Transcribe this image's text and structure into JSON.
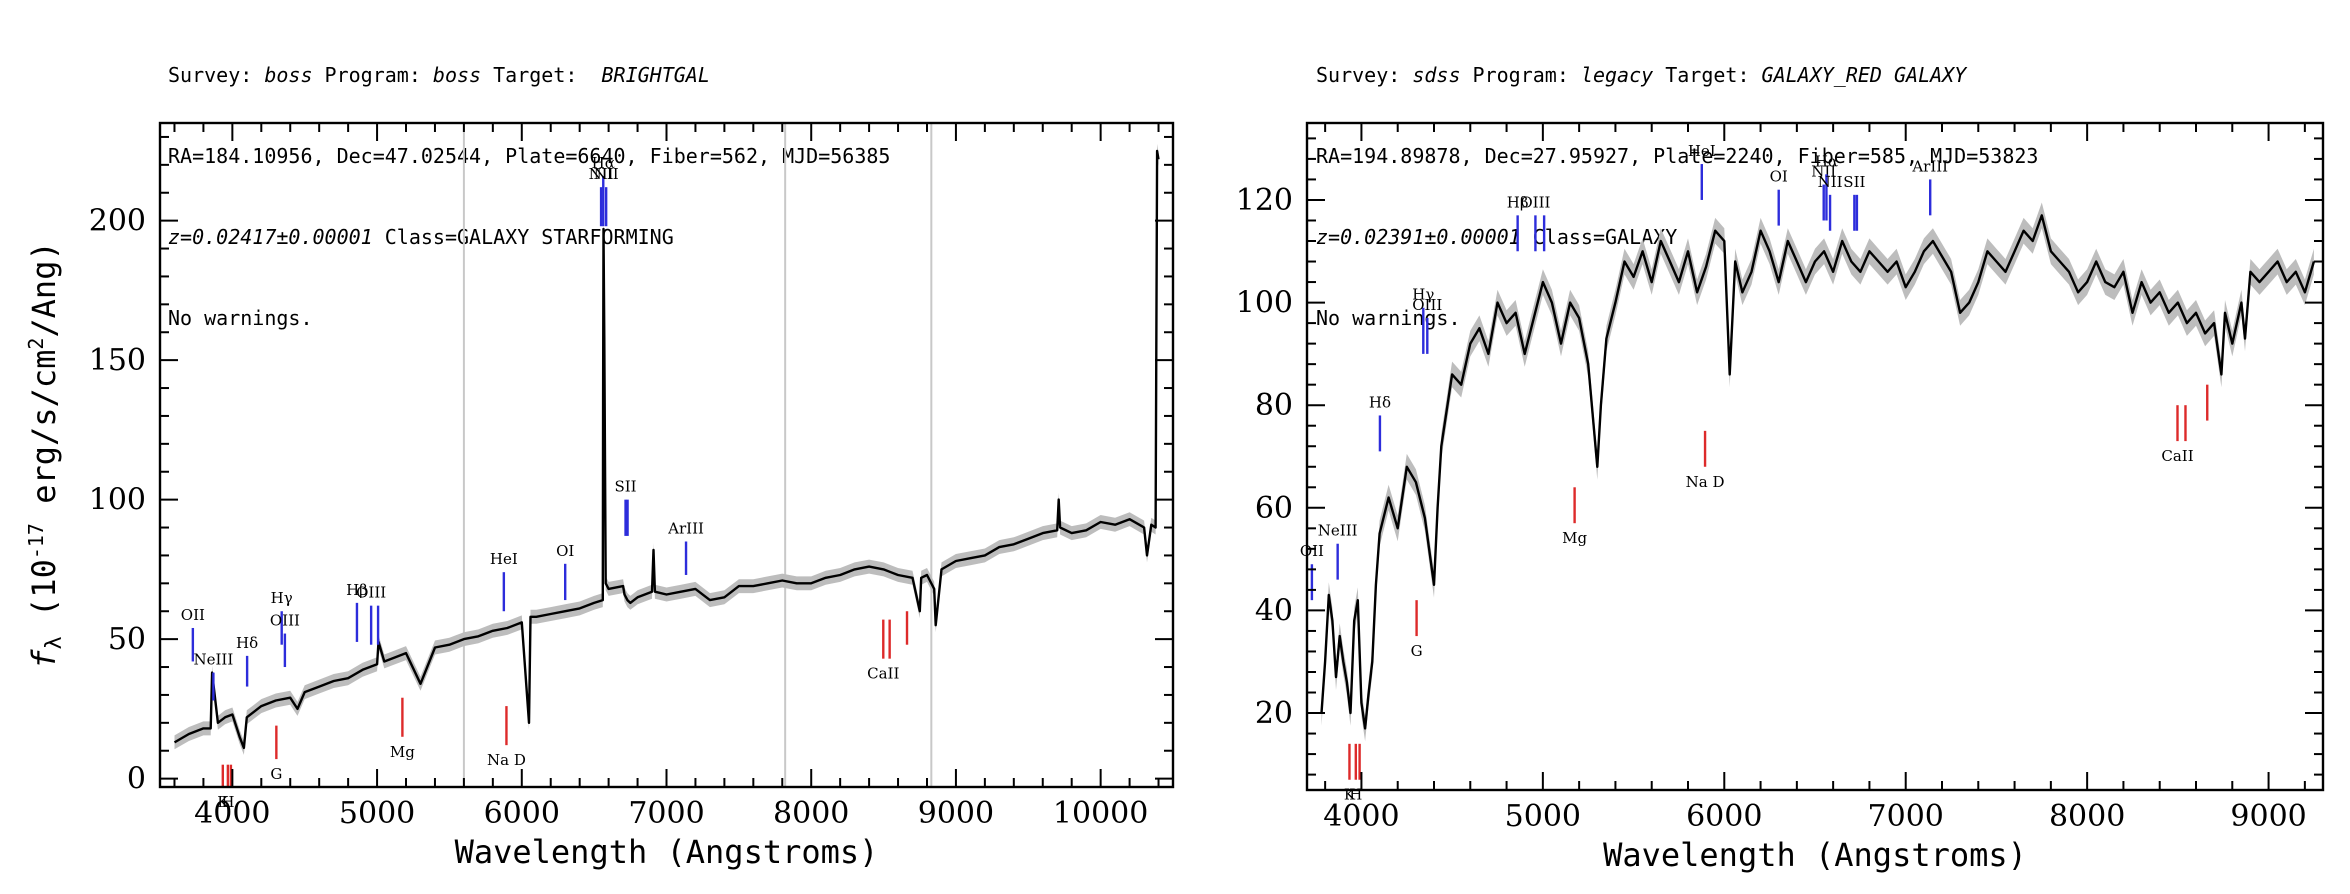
{
  "left": {
    "header": {
      "survey_label": "Survey: ",
      "survey": "boss",
      "program_label": " Program: ",
      "program": "boss",
      "target_label": " Target:  ",
      "target": "BRIGHTGAL",
      "line2": "RA=184.10956, Dec=47.02544, Plate=6640, Fiber=562, MJD=56385",
      "z": "z=0.02417±0.00001",
      "class_text": " Class=GALAXY STARFORMING",
      "warnings": "No warnings."
    },
    "ylabel_prefix": "f",
    "ylabel_sub": "λ",
    "ylabel_main": " (10",
    "ylabel_exp": "-17",
    "ylabel_rest": " erg/s/cm",
    "ylabel_exp2": "2",
    "ylabel_end": "/Ang)"
  },
  "right": {
    "header": {
      "survey_label": "Survey: ",
      "survey": "sdss",
      "program_label": " Program: ",
      "program": "legacy",
      "target_label": " Target: ",
      "target": "GALAXY_RED GALAXY",
      "line2": "RA=194.89878, Dec=27.95927, Plate=2240, Fiber=585, MJD=53823",
      "z": "z=0.02391±0.00001",
      "class_text": " Class=GALAXY",
      "warnings": "No warnings."
    }
  },
  "colors": {
    "emission": "#2d2ddb",
    "absorption": "#dd2a2a",
    "spectrum": "#000000",
    "error": "#bdbdbd",
    "gridline": "#c8c8c8"
  },
  "chart_data": [
    {
      "type": "line",
      "xlabel": "Wavelength (Angstroms)",
      "ylabel": "f_λ (10^-17 erg/s/cm^2/Ang)",
      "xlim": [
        3500,
        10500
      ],
      "ylim": [
        -3,
        235
      ],
      "xticks": [
        4000,
        5000,
        6000,
        7000,
        8000,
        9000,
        10000
      ],
      "yticks": [
        0,
        50,
        100,
        150,
        200
      ],
      "vlines": [
        5600,
        7820,
        8830
      ],
      "series": [
        {
          "x": [
            3600,
            3700,
            3800,
            3850,
            3860,
            3900,
            3950,
            4000,
            4050,
            4080,
            4100,
            4150,
            4200,
            4300,
            4400,
            4450,
            4500,
            4600,
            4700,
            4800,
            4900,
            5000,
            5010,
            5050,
            5100,
            5200,
            5300,
            5400,
            5500,
            5600,
            5700,
            5800,
            5900,
            6000,
            6050,
            6060,
            6100,
            6200,
            6300,
            6400,
            6500,
            6560,
            6562,
            6565,
            6570,
            6580,
            6600,
            6700,
            6710,
            6730,
            6750,
            6800,
            6900,
            6910,
            6920,
            7000,
            7100,
            7200,
            7300,
            7400,
            7500,
            7600,
            7700,
            7800,
            7900,
            8000,
            8100,
            8200,
            8300,
            8400,
            8500,
            8600,
            8700,
            8750,
            8760,
            8800,
            8850,
            8860,
            8900,
            9000,
            9100,
            9200,
            9300,
            9400,
            9500,
            9600,
            9700,
            9710,
            9720,
            9800,
            9900,
            10000,
            10100,
            10200,
            10300,
            10320,
            10350,
            10380,
            10390,
            10400
          ],
          "y": [
            13,
            16,
            18,
            18,
            38,
            20,
            22,
            23,
            15,
            11,
            22,
            24,
            26,
            28,
            29,
            25,
            31,
            33,
            35,
            36,
            39,
            41,
            49,
            42,
            43,
            45,
            34,
            47,
            48,
            50,
            51,
            53,
            54,
            56,
            20,
            58,
            58,
            59,
            60,
            61,
            63,
            64,
            136,
            197,
            158,
            70,
            68,
            69,
            66,
            64,
            63,
            65,
            67,
            82,
            67,
            66,
            67,
            68,
            64,
            65,
            69,
            69,
            70,
            71,
            70,
            70,
            72,
            73,
            75,
            76,
            75,
            73,
            72,
            60,
            72,
            73,
            68,
            55,
            75,
            78,
            79,
            80,
            83,
            84,
            86,
            88,
            89,
            100,
            90,
            88,
            89,
            92,
            91,
            93,
            90,
            80,
            91,
            90,
            225,
            222
          ]
        }
      ],
      "lines": [
        {
          "label": "OII",
          "x": 3727,
          "kind": "emission",
          "y": [
            54,
            42
          ]
        },
        {
          "label": "NeIII",
          "x": 3869,
          "kind": "emission",
          "y": [
            38,
            28
          ]
        },
        {
          "label": "Hδ",
          "x": 4102,
          "kind": "emission",
          "y": [
            44,
            33
          ]
        },
        {
          "label": "Hγ",
          "x": 4341,
          "kind": "emission",
          "y": [
            60,
            48
          ]
        },
        {
          "label": "OIII",
          "x": 4363,
          "kind": "emission",
          "y": [
            52,
            40
          ]
        },
        {
          "label": "Hβ",
          "x": 4861,
          "kind": "emission",
          "y": [
            63,
            49
          ]
        },
        {
          "label": "OIII",
          "x": 4959,
          "kind": "emission",
          "y": [
            62,
            48
          ]
        },
        {
          "label": "",
          "x": 5007,
          "kind": "emission",
          "y": [
            62,
            48
          ]
        },
        {
          "label": "HeI",
          "x": 5876,
          "kind": "emission",
          "y": [
            74,
            60
          ]
        },
        {
          "label": "OI",
          "x": 6300,
          "kind": "emission",
          "y": [
            77,
            64
          ]
        },
        {
          "label": "NII",
          "x": 6548,
          "kind": "emission",
          "y": [
            212,
            198
          ]
        },
        {
          "label": "Hα",
          "x": 6563,
          "kind": "emission",
          "y": [
            216,
            198
          ]
        },
        {
          "label": "NII",
          "x": 6583,
          "kind": "emission",
          "y": [
            212,
            198
          ]
        },
        {
          "label": "SII",
          "x": 6717,
          "kind": "emission",
          "y": [
            100,
            87
          ]
        },
        {
          "label": "",
          "x": 6731,
          "kind": "emission",
          "y": [
            100,
            87
          ]
        },
        {
          "label": "ArIII",
          "x": 7135,
          "kind": "emission",
          "y": [
            85,
            73
          ]
        },
        {
          "label": "K",
          "x": 3934,
          "kind": "absorption",
          "y": [
            5,
            -3
          ]
        },
        {
          "label": "H",
          "x": 3969,
          "kind": "absorption",
          "y": [
            5,
            -3
          ]
        },
        {
          "label": "",
          "x": 3990,
          "kind": "absorption",
          "y": [
            5,
            -3
          ]
        },
        {
          "label": "G",
          "x": 4304,
          "kind": "absorption",
          "y": [
            19,
            7
          ]
        },
        {
          "label": "Mg",
          "x": 5175,
          "kind": "absorption",
          "y": [
            29,
            15
          ]
        },
        {
          "label": "Na D",
          "x": 5894,
          "kind": "absorption",
          "y": [
            26,
            12
          ]
        },
        {
          "label": "CaII",
          "x": 8498,
          "kind": "absorption",
          "y": [
            57,
            43
          ]
        },
        {
          "label": "",
          "x": 8542,
          "kind": "absorption",
          "y": [
            57,
            43
          ]
        },
        {
          "label": "",
          "x": 8662,
          "kind": "absorption",
          "y": [
            60,
            48
          ]
        }
      ]
    },
    {
      "type": "line",
      "xlabel": "Wavelength (Angstroms)",
      "ylabel": "",
      "xlim": [
        3700,
        9300
      ],
      "ylim": [
        5,
        135
      ],
      "xticks": [
        4000,
        5000,
        6000,
        7000,
        8000,
        9000
      ],
      "yticks": [
        20,
        40,
        60,
        80,
        100,
        120
      ],
      "vlines": [],
      "series": [
        {
          "x": [
            3780,
            3800,
            3820,
            3840,
            3860,
            3880,
            3900,
            3920,
            3940,
            3960,
            3980,
            4000,
            4020,
            4040,
            4060,
            4080,
            4100,
            4150,
            4200,
            4250,
            4300,
            4350,
            4400,
            4420,
            4440,
            4500,
            4550,
            4600,
            4650,
            4700,
            4750,
            4800,
            4850,
            4900,
            4950,
            5000,
            5050,
            5100,
            5150,
            5200,
            5250,
            5300,
            5320,
            5350,
            5400,
            5450,
            5500,
            5550,
            5600,
            5650,
            5700,
            5750,
            5800,
            5850,
            5900,
            5950,
            6000,
            6030,
            6060,
            6100,
            6150,
            6200,
            6250,
            6300,
            6350,
            6400,
            6450,
            6500,
            6550,
            6600,
            6650,
            6700,
            6750,
            6800,
            6850,
            6900,
            6950,
            7000,
            7050,
            7100,
            7150,
            7200,
            7250,
            7300,
            7350,
            7400,
            7450,
            7500,
            7550,
            7600,
            7650,
            7700,
            7750,
            7800,
            7850,
            7900,
            7950,
            8000,
            8050,
            8100,
            8150,
            8200,
            8250,
            8300,
            8350,
            8400,
            8450,
            8500,
            8550,
            8600,
            8650,
            8700,
            8740,
            8760,
            8800,
            8850,
            8870,
            8900,
            8950,
            9000,
            9050,
            9100,
            9150,
            9200,
            9250
          ],
          "y": [
            20,
            30,
            43,
            38,
            27,
            35,
            30,
            26,
            20,
            38,
            42,
            22,
            17,
            24,
            30,
            45,
            55,
            62,
            56,
            68,
            65,
            58,
            45,
            60,
            72,
            86,
            84,
            92,
            95,
            90,
            100,
            96,
            98,
            90,
            97,
            104,
            100,
            92,
            100,
            97,
            88,
            68,
            80,
            93,
            100,
            108,
            105,
            110,
            104,
            112,
            108,
            104,
            110,
            102,
            107,
            114,
            112,
            86,
            108,
            102,
            106,
            114,
            110,
            104,
            112,
            108,
            104,
            108,
            110,
            106,
            112,
            108,
            106,
            110,
            108,
            106,
            108,
            103,
            106,
            110,
            112,
            109,
            106,
            98,
            100,
            104,
            110,
            108,
            106,
            110,
            114,
            112,
            117,
            110,
            108,
            106,
            102,
            104,
            108,
            104,
            103,
            106,
            98,
            104,
            100,
            102,
            98,
            100,
            96,
            98,
            94,
            96,
            86,
            98,
            92,
            100,
            93,
            106,
            104,
            106,
            108,
            104,
            106,
            102,
            108
          ]
        }
      ],
      "lines": [
        {
          "label": "OII",
          "x": 3727,
          "kind": "emission",
          "y": [
            49,
            42
          ]
        },
        {
          "label": "NeIII",
          "x": 3869,
          "kind": "emission",
          "y": [
            53,
            46
          ]
        },
        {
          "label": "Hδ",
          "x": 4102,
          "kind": "emission",
          "y": [
            78,
            71
          ]
        },
        {
          "label": "Hγ",
          "x": 4341,
          "kind": "emission",
          "y": [
            99,
            90
          ]
        },
        {
          "label": "OIII",
          "x": 4363,
          "kind": "emission",
          "y": [
            97,
            90
          ]
        },
        {
          "label": "Hβ",
          "x": 4861,
          "kind": "emission",
          "y": [
            117,
            110
          ]
        },
        {
          "label": "OIII",
          "x": 4959,
          "kind": "emission",
          "y": [
            117,
            110
          ]
        },
        {
          "label": "",
          "x": 5007,
          "kind": "emission",
          "y": [
            117,
            110
          ]
        },
        {
          "label": "HeI",
          "x": 5876,
          "kind": "emission",
          "y": [
            127,
            120
          ]
        },
        {
          "label": "OI",
          "x": 6300,
          "kind": "emission",
          "y": [
            122,
            115
          ]
        },
        {
          "label": "NII",
          "x": 6548,
          "kind": "emission",
          "y": [
            123,
            116
          ]
        },
        {
          "label": "Hα",
          "x": 6563,
          "kind": "emission",
          "y": [
            125,
            116
          ]
        },
        {
          "label": "NII",
          "x": 6583,
          "kind": "emission",
          "y": [
            121,
            114
          ]
        },
        {
          "label": "SII",
          "x": 6717,
          "kind": "emission",
          "y": [
            121,
            114
          ]
        },
        {
          "label": "",
          "x": 6731,
          "kind": "emission",
          "y": [
            121,
            114
          ]
        },
        {
          "label": "ArIII",
          "x": 7135,
          "kind": "emission",
          "y": [
            124,
            117
          ]
        },
        {
          "label": "K",
          "x": 3934,
          "kind": "absorption",
          "y": [
            14,
            7
          ]
        },
        {
          "label": "H",
          "x": 3969,
          "kind": "absorption",
          "y": [
            14,
            7
          ]
        },
        {
          "label": "",
          "x": 3990,
          "kind": "absorption",
          "y": [
            14,
            7
          ]
        },
        {
          "label": "G",
          "x": 4304,
          "kind": "absorption",
          "y": [
            42,
            35
          ]
        },
        {
          "label": "Mg",
          "x": 5175,
          "kind": "absorption",
          "y": [
            64,
            57
          ]
        },
        {
          "label": "Na D",
          "x": 5894,
          "kind": "absorption",
          "y": [
            75,
            68
          ]
        },
        {
          "label": "CaII",
          "x": 8498,
          "kind": "absorption",
          "y": [
            80,
            73
          ]
        },
        {
          "label": "",
          "x": 8542,
          "kind": "absorption",
          "y": [
            80,
            73
          ]
        },
        {
          "label": "",
          "x": 8662,
          "kind": "absorption",
          "y": [
            84,
            77
          ]
        }
      ]
    }
  ]
}
